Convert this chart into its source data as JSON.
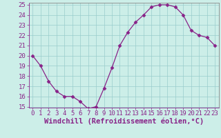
{
  "x": [
    0,
    1,
    2,
    3,
    4,
    5,
    6,
    7,
    8,
    9,
    10,
    11,
    12,
    13,
    14,
    15,
    16,
    17,
    18,
    19,
    20,
    21,
    22,
    23
  ],
  "y": [
    20.0,
    19.0,
    17.5,
    16.5,
    16.0,
    16.0,
    15.5,
    14.8,
    15.0,
    16.8,
    18.8,
    21.0,
    22.3,
    23.3,
    24.0,
    24.8,
    25.0,
    25.0,
    24.8,
    24.0,
    22.5,
    22.0,
    21.8,
    21.0
  ],
  "line_color": "#882288",
  "marker": "D",
  "marker_size": 2.5,
  "background_color": "#cceee8",
  "grid_color": "#99cccc",
  "xlabel": "Windchill (Refroidissement éolien,°C)",
  "xlabel_fontsize": 7.5,
  "ylim": [
    15,
    25
  ],
  "xlim": [
    -0.5,
    23.5
  ],
  "yticks": [
    15,
    16,
    17,
    18,
    19,
    20,
    21,
    22,
    23,
    24,
    25
  ],
  "xticks": [
    0,
    1,
    2,
    3,
    4,
    5,
    6,
    7,
    8,
    9,
    10,
    11,
    12,
    13,
    14,
    15,
    16,
    17,
    18,
    19,
    20,
    21,
    22,
    23
  ],
  "tick_fontsize": 6.5,
  "axis_color": "#882288",
  "spine_color": "#888888"
}
